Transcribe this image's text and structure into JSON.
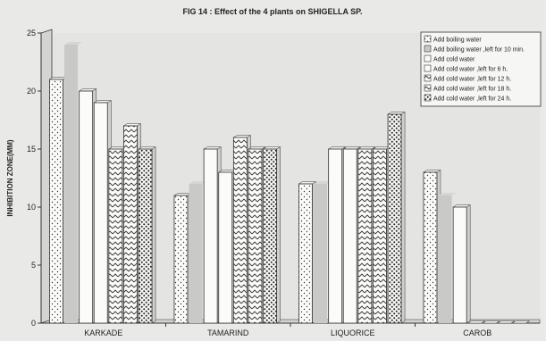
{
  "chart_data": {
    "type": "bar",
    "title": "FIG 14 : Effect of the 4 plants on SHIGELLA SP.",
    "xlabel": "",
    "ylabel": "INHIBITION ZONE(MM)",
    "ylim": [
      0,
      25
    ],
    "yticks": [
      0,
      5,
      10,
      15,
      20,
      25
    ],
    "grid": false,
    "legend_position": "top-right",
    "categories": [
      "KARKADE",
      "TAMARIND",
      "LIQUORICE",
      "CAROB"
    ],
    "series": [
      {
        "name": "Add boiling water",
        "pattern": "dots",
        "values": [
          21,
          11,
          12,
          13
        ]
      },
      {
        "name": "Add boiling water ,left for 10 min.",
        "pattern": "shadow",
        "values": [
          24,
          12,
          12,
          11
        ]
      },
      {
        "name": "Add cold water",
        "pattern": "plain",
        "values": [
          20,
          15,
          15,
          10
        ]
      },
      {
        "name": "Add cold water ,left for 6 h.",
        "pattern": "plain",
        "values": [
          19,
          13,
          15,
          0
        ]
      },
      {
        "name": "Add cold water ,left for 12 h.",
        "pattern": "zigzag",
        "values": [
          15,
          16,
          15,
          0
        ]
      },
      {
        "name": "Add cold water ,left for 18 h.",
        "pattern": "zigzag",
        "values": [
          17,
          15,
          15,
          0
        ]
      },
      {
        "name": "Add cold water ,left for 24 h.",
        "pattern": "heavydots",
        "values": [
          15,
          15,
          18,
          0
        ]
      }
    ],
    "colors": {
      "bar_face": "#fbfbf9",
      "bar_edge": "#333333",
      "shadow_bar": "#c9c9c7",
      "plot_bg": "#e4e4e2",
      "wall": "#d4d4d2",
      "axis": "#333333"
    }
  }
}
